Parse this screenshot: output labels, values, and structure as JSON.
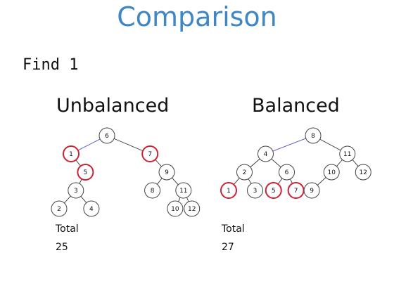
{
  "slide": {
    "title": "Comparison",
    "query": "Find 1"
  },
  "colors": {
    "title": "#3f87c4",
    "highlight": "#cc2233",
    "path_edge": "#6666cc",
    "node": "#444444"
  },
  "trees": [
    {
      "title": "Unbalanced",
      "total_label": "Total",
      "total_value": "25",
      "nodes": [
        {
          "label": "6",
          "depth": 0,
          "slot": 2.0,
          "highlight": false
        },
        {
          "label": "1",
          "depth": 1,
          "slot": 0.5,
          "highlight": true
        },
        {
          "label": "7",
          "depth": 1,
          "slot": 3.8,
          "highlight": true
        },
        {
          "label": "5",
          "depth": 2,
          "slot": 1.1,
          "highlight": true
        },
        {
          "label": "9",
          "depth": 2,
          "slot": 4.5,
          "highlight": false
        },
        {
          "label": "3",
          "depth": 3,
          "slot": 0.7,
          "highlight": false
        },
        {
          "label": "8",
          "depth": 3,
          "slot": 3.9,
          "highlight": false
        },
        {
          "label": "11",
          "depth": 3,
          "slot": 5.2,
          "highlight": false
        },
        {
          "label": "2",
          "depth": 4,
          "slot": 0.0,
          "highlight": false
        },
        {
          "label": "4",
          "depth": 4,
          "slot": 1.35,
          "highlight": false
        },
        {
          "label": "10",
          "depth": 4,
          "slot": 4.85,
          "highlight": false
        },
        {
          "label": "12",
          "depth": 4,
          "slot": 5.55,
          "highlight": false
        }
      ],
      "edges": [
        {
          "from": "6",
          "to": "1",
          "path": true
        },
        {
          "from": "6",
          "to": "7",
          "path": false
        },
        {
          "from": "1",
          "to": "5",
          "path": false
        },
        {
          "from": "5",
          "to": "3",
          "path": false
        },
        {
          "from": "3",
          "to": "2",
          "path": false
        },
        {
          "from": "3",
          "to": "4",
          "path": false
        },
        {
          "from": "7",
          "to": "9",
          "path": false
        },
        {
          "from": "9",
          "to": "8",
          "path": false
        },
        {
          "from": "9",
          "to": "11",
          "path": false
        },
        {
          "from": "11",
          "to": "10",
          "path": false
        },
        {
          "from": "11",
          "to": "12",
          "path": false
        }
      ]
    },
    {
      "title": "Balanced",
      "total_label": "Total",
      "total_value": "27",
      "nodes": [
        {
          "label": "8",
          "depth": 0,
          "slot": 3.2,
          "highlight": false
        },
        {
          "label": "4",
          "depth": 1,
          "slot": 1.4,
          "highlight": false
        },
        {
          "label": "11",
          "depth": 1,
          "slot": 4.5,
          "highlight": false
        },
        {
          "label": "2",
          "depth": 2,
          "slot": 0.6,
          "highlight": false
        },
        {
          "label": "6",
          "depth": 2,
          "slot": 2.2,
          "highlight": false
        },
        {
          "label": "10",
          "depth": 2,
          "slot": 3.9,
          "highlight": false
        },
        {
          "label": "12",
          "depth": 2,
          "slot": 5.1,
          "highlight": false
        },
        {
          "label": "1",
          "depth": 3,
          "slot": 0.0,
          "highlight": true
        },
        {
          "label": "3",
          "depth": 3,
          "slot": 1.0,
          "highlight": false
        },
        {
          "label": "5",
          "depth": 3,
          "slot": 1.7,
          "highlight": true
        },
        {
          "label": "7",
          "depth": 3,
          "slot": 2.55,
          "highlight": true
        },
        {
          "label": "9",
          "depth": 3,
          "slot": 3.15,
          "highlight": false
        }
      ],
      "edges": [
        {
          "from": "8",
          "to": "4",
          "path": true
        },
        {
          "from": "8",
          "to": "11",
          "path": false
        },
        {
          "from": "4",
          "to": "2",
          "path": false
        },
        {
          "from": "4",
          "to": "6",
          "path": false
        },
        {
          "from": "2",
          "to": "1",
          "path": false
        },
        {
          "from": "2",
          "to": "3",
          "path": false
        },
        {
          "from": "6",
          "to": "5",
          "path": false
        },
        {
          "from": "6",
          "to": "7",
          "path": false
        },
        {
          "from": "11",
          "to": "10",
          "path": false
        },
        {
          "from": "11",
          "to": "12",
          "path": false
        },
        {
          "from": "10",
          "to": "9",
          "path": false
        }
      ]
    }
  ]
}
